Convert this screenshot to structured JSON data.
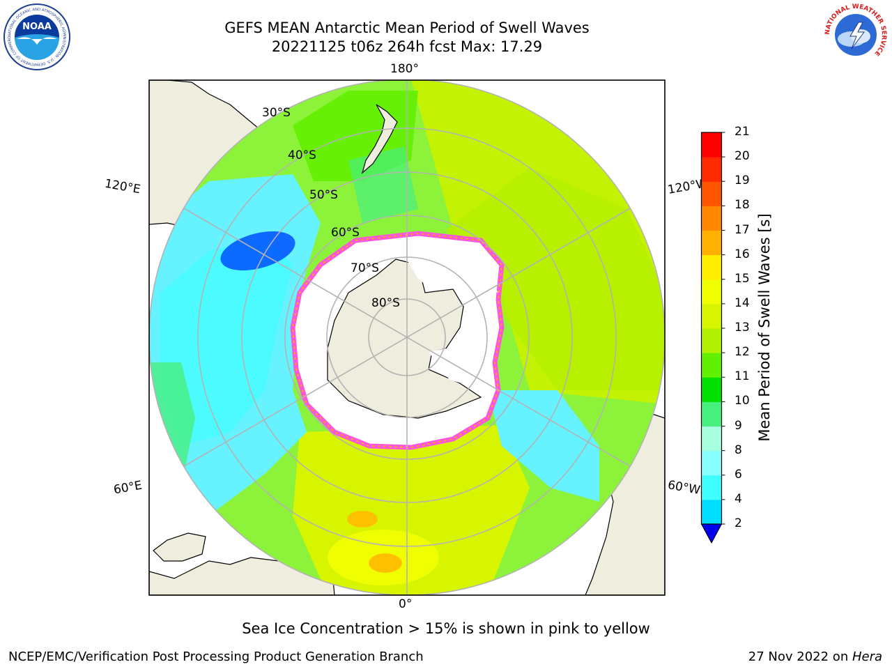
{
  "header": {
    "title_line1": "GEFS MEAN Antarctic Mean Period of Swell Waves",
    "title_line2": "20221125 t06z 264h fcst   Max: 17.29"
  },
  "logos": {
    "left": "NOAA",
    "left_ring_text": "NATIONAL OCEANIC AND ATMOSPHERIC ADMINISTRATION · U.S. DEPARTMENT OF COMMERCE",
    "right_ring_text": "NATIONAL WEATHER SERVICE"
  },
  "map": {
    "projection": "south-polar-stereographic",
    "lon_labels": {
      "top": "180°",
      "bottom": "0°",
      "left_upper": "120°E",
      "left_lower": "60°E",
      "right_upper": "120°W",
      "right_lower": "60°W"
    },
    "lat_labels": [
      "30°S",
      "40°S",
      "50°S",
      "60°S",
      "70°S",
      "80°S"
    ],
    "colors": {
      "land": "#efedde",
      "ice": "#ffffff",
      "ice_edge": "#ff55dd",
      "ocean_main": "#8cf23a",
      "ocean_indian": "#66f2ff"
    }
  },
  "colorbar": {
    "label": "Mean Period of Swell Waves [s]",
    "ticks": [
      "2",
      "4",
      "6",
      "8",
      "9",
      "10",
      "11",
      "12",
      "13",
      "14",
      "15",
      "16",
      "17",
      "18",
      "19",
      "20",
      "21"
    ],
    "colors": [
      "#0050ff",
      "#00ddff",
      "#40ffff",
      "#88ffff",
      "#a8ffe0",
      "#48f080",
      "#00e000",
      "#60f000",
      "#b0f000",
      "#d8f500",
      "#f0ff00",
      "#ffee00",
      "#ffb000",
      "#ff8800",
      "#ff5500",
      "#ff2a00",
      "#ff0000"
    ],
    "extend_color": "#0000ee"
  },
  "footnote": "Sea Ice Concentration > 15% is shown in pink to yellow",
  "credits": {
    "left": "NCEP/EMC/Verification Post Processing Product Generation Branch",
    "right_date": "27 Nov 2022 on ",
    "right_machine": "Hera"
  }
}
